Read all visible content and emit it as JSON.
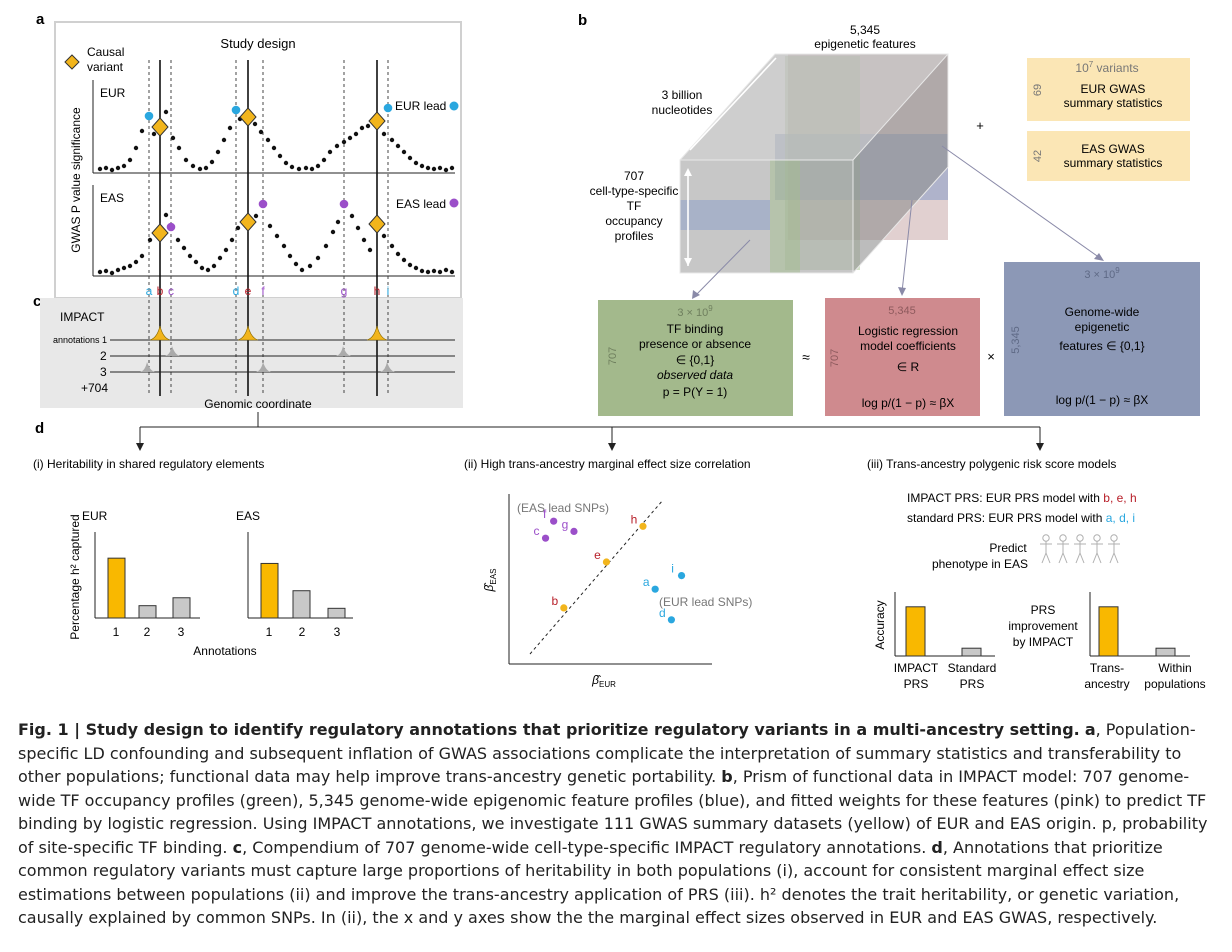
{
  "panel_a": {
    "letter": "a",
    "title": "Study design",
    "legend_label_line1": "Causal",
    "legend_label_line2": "variant",
    "eur_label": "EUR",
    "eas_label": "EAS",
    "eur_lead_label": "EUR lead",
    "eas_lead_label": "EAS lead",
    "ylabel": "GWAS P value significance",
    "snp_letters": [
      "a",
      "b",
      "c",
      "d",
      "e",
      "f",
      "g",
      "h",
      "i"
    ],
    "colors": {
      "causal": "#f2b51c",
      "eur_lead": "#2aa7df",
      "eas_lead": "#9b4fc9",
      "causal_letter": "#b8202a"
    }
  },
  "panel_c": {
    "letter": "c",
    "title": "IMPACT",
    "row_labels": [
      "annotations 1",
      "2",
      "3",
      "+704"
    ],
    "xlabel": "Genomic coordinate"
  },
  "panel_b": {
    "letter": "b",
    "cube_top": "5,345",
    "cube_top2": "epigenetic features",
    "cube_left1": "3 billion",
    "cube_left2": "nucleotides",
    "cube_side": [
      "707",
      "cell-type-specific",
      "TF",
      "occupancy",
      "profiles"
    ],
    "plus": "+",
    "eur_box": {
      "exp_base": "10",
      "exp_sup": "7",
      "exp_rest": " variants",
      "count": "69",
      "line1": "EUR GWAS",
      "line2": "summary statistics"
    },
    "eas_box": {
      "count": "42",
      "line1": "EAS GWAS",
      "line2": "summary statistics"
    },
    "green_box": {
      "top_base": "3 × 10",
      "top_sup": "9",
      "side": "707",
      "line1": "TF binding",
      "line2": "presence or absence",
      "line3": "∈ {0,1}",
      "line4": "observed data",
      "line5": "p = P(Y = 1)"
    },
    "approx": "≈",
    "pink_box": {
      "top": "5,345",
      "side": "707",
      "line1": "Logistic regression",
      "line2": "model coefficients",
      "line3": "∈ R",
      "line4": "log p/(1 − p) ≈ βX"
    },
    "times": "×",
    "blue_box": {
      "top_base": "3 × 10",
      "top_sup": "9",
      "side": "5,345",
      "line1": "Genome-wide",
      "line2": "epigenetic",
      "line3": "features ∈ {0,1}",
      "line4": "log p/(1 − p) ≈ βX"
    },
    "colors": {
      "green": "#a3b98c",
      "pink": "#cf8a8e",
      "blue": "#8c98b6",
      "yellow": "#fbe6b5"
    }
  },
  "panel_d": {
    "letter": "d",
    "sub1": {
      "title": "(i) Heritability in shared regulatory elements",
      "ylabel": "Percentage h² captured",
      "xlabel": "Annotations"
    },
    "sub2": {
      "title": "(ii) High trans-ancestry marginal effect size correlation",
      "eas_group": "(EAS lead SNPs)",
      "eur_group": "(EUR lead SNPs)",
      "xlabel": "β̂EUR",
      "ylabel": "β̂EAS"
    },
    "sub3": {
      "title": "(iii) Trans-ancestry polygenic risk score models",
      "line1_prefix": "IMPACT PRS: EUR PRS model with ",
      "line1_snps": "b, e, h",
      "line2_prefix": "standard PRS: EUR PRS model with ",
      "line2_snps": "a, d, i",
      "predict1": "Predict",
      "predict2": "phenotype in EAS"
    }
  },
  "chart_data": [
    {
      "type": "bar",
      "title": "EUR",
      "categories": [
        "1",
        "2",
        "3"
      ],
      "values": [
        68,
        14,
        23
      ],
      "xlabel": "Annotations",
      "ylabel": "Percentage h² captured",
      "colors": [
        "#f9b800",
        "#c8c8c8",
        "#c8c8c8"
      ]
    },
    {
      "type": "bar",
      "title": "EAS",
      "categories": [
        "1",
        "2",
        "3"
      ],
      "values": [
        62,
        31,
        11
      ],
      "xlabel": "",
      "ylabel": "",
      "colors": [
        "#f9b800",
        "#c8c8c8",
        "#c8c8c8"
      ]
    },
    {
      "type": "scatter",
      "title": "",
      "xlabel": "β̂EUR",
      "ylabel": "β̂EAS",
      "series": [
        {
          "name": "(EAS lead SNPs)",
          "color": "#9b4fc9",
          "points": [
            {
              "label": "f",
              "x": 0.22,
              "y": 0.84
            },
            {
              "label": "g",
              "x": 0.32,
              "y": 0.78
            },
            {
              "label": "c",
              "x": 0.18,
              "y": 0.74
            }
          ]
        },
        {
          "name": "(EUR lead SNPs)",
          "color": "#2aa7df",
          "points": [
            {
              "label": "a",
              "x": 0.72,
              "y": 0.44
            },
            {
              "label": "i",
              "x": 0.85,
              "y": 0.52
            },
            {
              "label": "d",
              "x": 0.8,
              "y": 0.26
            }
          ]
        },
        {
          "name": "",
          "color": "#f2b51c",
          "points": [
            {
              "label": "b",
              "x": 0.27,
              "y": 0.33
            },
            {
              "label": "e",
              "x": 0.48,
              "y": 0.6
            },
            {
              "label": "h",
              "x": 0.66,
              "y": 0.81
            }
          ]
        }
      ]
    },
    {
      "type": "bar",
      "title": "",
      "categories": [
        "IMPACT PRS",
        "Standard PRS"
      ],
      "values": [
        82,
        13
      ],
      "ylabel": "Accuracy",
      "colors": [
        "#f9b800",
        "#c8c8c8"
      ]
    },
    {
      "type": "bar",
      "title": "",
      "categories": [
        "Trans-ancestry",
        "Within populations"
      ],
      "values": [
        82,
        13
      ],
      "ylabel": "PRS improvement by IMPACT",
      "colors": [
        "#f9b800",
        "#c8c8c8"
      ]
    }
  ],
  "caption": {
    "fig_label": "Fig. 1 | Study design to identify regulatory annotations that prioritize regulatory variants in a multi-ancestry setting.",
    "a_label": "a",
    "a_text": ", Population-specific LD confounding and subsequent inflation of GWAS associations complicate the interpretation of summary statistics and transferability to other populations; functional data may help improve trans-ancestry genetic portability.",
    "b_label": "b",
    "b_text": ", Prism of functional data in IMPACT model: 707 genome-wide TF occupancy profiles (green), 5,345 genome-wide epigenomic feature profiles (blue), and fitted weights for these features (pink) to predict TF binding by logistic regression. Using IMPACT annotations, we investigate 111 GWAS summary datasets (yellow) of EUR and EAS origin. p, probability of site-specific TF binding.",
    "c_label": "c",
    "c_text": ", Compendium of 707 genome-wide cell-type-specific IMPACT regulatory annotations.",
    "d_label": "d",
    "d_text": ", Annotations that prioritize common regulatory variants must capture large proportions of heritability in both populations (i), account for consistent marginal effect size estimations between populations (ii) and improve the trans-ancestry application of PRS (iii). h² denotes the trait heritability, or genetic variation, causally explained by common SNPs. In (ii), the x and y axes show the the marginal effect sizes observed in EUR and EAS GWAS, respectively."
  }
}
